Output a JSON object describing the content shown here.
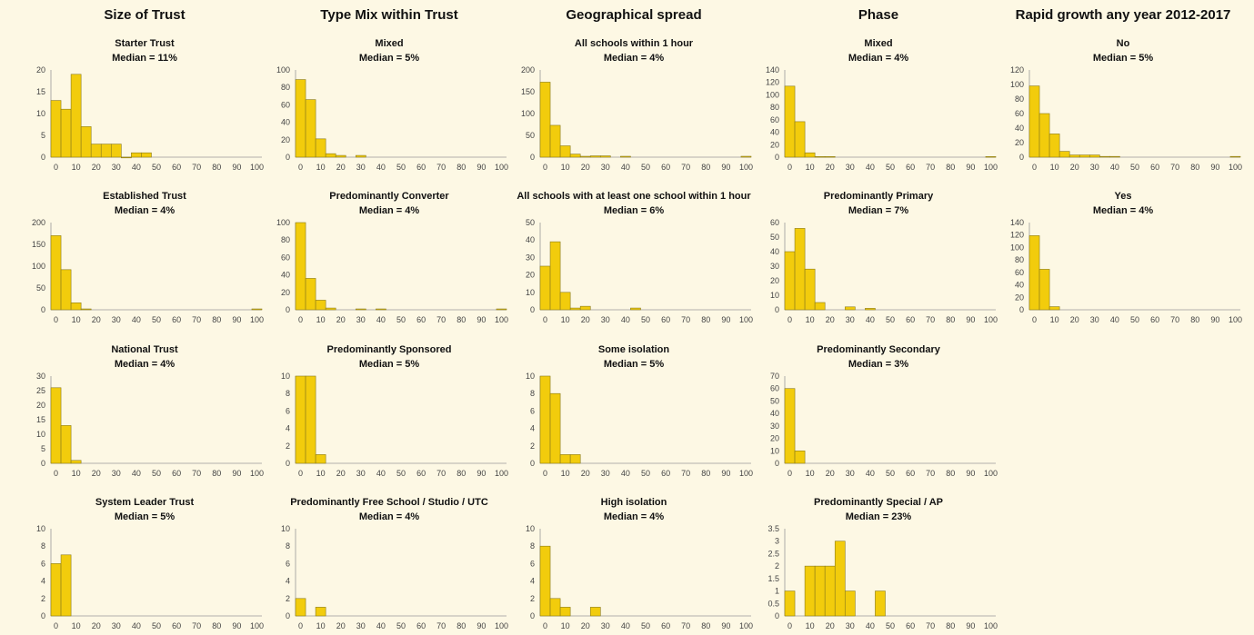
{
  "columns": [
    "Size of Trust",
    "Type Mix within Trust",
    "Geographical spread",
    "Phase",
    "Rapid growth any year 2012-2017"
  ],
  "colors": {
    "bar": "#f2cc0c",
    "bar_edge": "#8a7a1a",
    "axis": "#999999",
    "background": "#fdf8e4"
  },
  "chart_data": [
    {
      "type": "bar",
      "column": 0,
      "row": 0,
      "title": "Starter Trust",
      "subtitle": "Median = 11%",
      "ylim": [
        0,
        20
      ],
      "yticks": [
        0,
        5,
        10,
        15,
        20
      ],
      "x": [
        0,
        5,
        10,
        15,
        20,
        25,
        30,
        35,
        40,
        45
      ],
      "values": [
        13,
        11,
        19,
        7,
        3,
        3,
        3,
        0,
        1,
        1
      ]
    },
    {
      "type": "bar",
      "column": 0,
      "row": 1,
      "title": "Established Trust",
      "subtitle": "Median = 4%",
      "ylim": [
        0,
        200
      ],
      "yticks": [
        0,
        50,
        100,
        150,
        200
      ],
      "x": [
        0,
        5,
        10,
        15,
        100
      ],
      "values": [
        170,
        92,
        16,
        2,
        2
      ]
    },
    {
      "type": "bar",
      "column": 0,
      "row": 2,
      "title": "National Trust",
      "subtitle": "Median = 4%",
      "ylim": [
        0,
        30
      ],
      "yticks": [
        0,
        5,
        10,
        15,
        20,
        25,
        30
      ],
      "x": [
        0,
        5,
        10
      ],
      "values": [
        26,
        13,
        1
      ]
    },
    {
      "type": "bar",
      "column": 0,
      "row": 3,
      "title": "System Leader Trust",
      "subtitle": "Median = 5%",
      "ylim": [
        0,
        10
      ],
      "yticks": [
        0,
        2,
        4,
        6,
        8,
        10
      ],
      "x": [
        0,
        5
      ],
      "values": [
        6,
        7
      ]
    },
    {
      "type": "bar",
      "column": 1,
      "row": 0,
      "title": "Mixed",
      "subtitle": "Median = 5%",
      "ylim": [
        0,
        100
      ],
      "yticks": [
        0,
        20,
        40,
        60,
        80,
        100
      ],
      "x": [
        0,
        5,
        10,
        15,
        20,
        30
      ],
      "values": [
        89,
        66,
        21,
        4,
        2,
        2
      ]
    },
    {
      "type": "bar",
      "column": 1,
      "row": 1,
      "title": "Predominantly Converter",
      "subtitle": "Median = 4%",
      "ylim": [
        0,
        100
      ],
      "yticks": [
        0,
        20,
        40,
        60,
        80,
        100
      ],
      "x": [
        0,
        5,
        10,
        15,
        30,
        40,
        100
      ],
      "values": [
        100,
        36,
        11,
        2,
        1,
        1,
        1
      ]
    },
    {
      "type": "bar",
      "column": 1,
      "row": 2,
      "title": "Predominantly Sponsored",
      "subtitle": "Median = 5%",
      "ylim": [
        0,
        10
      ],
      "yticks": [
        0,
        2,
        4,
        6,
        8,
        10
      ],
      "x": [
        0,
        5,
        10
      ],
      "values": [
        10,
        10,
        1
      ]
    },
    {
      "type": "bar",
      "column": 1,
      "row": 3,
      "title": "Predominantly Free School / Studio / UTC",
      "subtitle": "Median = 4%",
      "ylim": [
        0,
        10
      ],
      "yticks": [
        0,
        2,
        4,
        6,
        8,
        10
      ],
      "x": [
        0,
        10
      ],
      "values": [
        2,
        1
      ]
    },
    {
      "type": "bar",
      "column": 2,
      "row": 0,
      "title": "All schools within 1 hour",
      "subtitle": "Median = 4%",
      "ylim": [
        0,
        200
      ],
      "yticks": [
        0,
        50,
        100,
        150,
        200
      ],
      "x": [
        0,
        5,
        10,
        15,
        20,
        25,
        30,
        40,
        100
      ],
      "values": [
        172,
        73,
        26,
        7,
        2,
        3,
        3,
        2,
        2
      ]
    },
    {
      "type": "bar",
      "column": 2,
      "row": 1,
      "title": "All schools with at least one school within 1 hour",
      "subtitle": "Median = 6%",
      "ylim": [
        0,
        50
      ],
      "yticks": [
        0,
        10,
        20,
        30,
        40,
        50
      ],
      "x": [
        0,
        5,
        10,
        15,
        20,
        45
      ],
      "values": [
        25,
        39,
        10,
        1,
        2,
        1
      ]
    },
    {
      "type": "bar",
      "column": 2,
      "row": 2,
      "title": "Some isolation",
      "subtitle": "Median = 5%",
      "ylim": [
        0,
        10
      ],
      "yticks": [
        0,
        2,
        4,
        6,
        8,
        10
      ],
      "x": [
        0,
        5,
        10,
        15
      ],
      "values": [
        10,
        8,
        1,
        1
      ]
    },
    {
      "type": "bar",
      "column": 2,
      "row": 3,
      "title": "High isolation",
      "subtitle": "Median = 4%",
      "ylim": [
        0,
        10
      ],
      "yticks": [
        0,
        2,
        4,
        6,
        8,
        10
      ],
      "x": [
        0,
        5,
        10,
        25
      ],
      "values": [
        8,
        2,
        1,
        1
      ]
    },
    {
      "type": "bar",
      "column": 3,
      "row": 0,
      "title": "Mixed",
      "subtitle": "Median = 4%",
      "ylim": [
        0,
        140
      ],
      "yticks": [
        0,
        20,
        40,
        60,
        80,
        100,
        120,
        140
      ],
      "x": [
        0,
        5,
        10,
        15,
        20,
        100
      ],
      "values": [
        114,
        57,
        7,
        1,
        1,
        1
      ]
    },
    {
      "type": "bar",
      "column": 3,
      "row": 1,
      "title": "Predominantly Primary",
      "subtitle": "Median = 7%",
      "ylim": [
        0,
        60
      ],
      "yticks": [
        0,
        10,
        20,
        30,
        40,
        50,
        60
      ],
      "x": [
        0,
        5,
        10,
        15,
        30,
        40
      ],
      "values": [
        40,
        56,
        28,
        5,
        2,
        1
      ]
    },
    {
      "type": "bar",
      "column": 3,
      "row": 2,
      "title": "Predominantly Secondary",
      "subtitle": "Median = 3%",
      "ylim": [
        0,
        70
      ],
      "yticks": [
        0,
        10,
        20,
        30,
        40,
        50,
        60,
        70
      ],
      "x": [
        0,
        5
      ],
      "values": [
        60,
        10
      ]
    },
    {
      "type": "bar",
      "column": 3,
      "row": 3,
      "title": "Predominantly Special / AP",
      "subtitle": "Median = 23%",
      "ylim": [
        0,
        3.5
      ],
      "yticks": [
        0,
        0.5,
        1,
        1.5,
        2,
        2.5,
        3,
        3.5
      ],
      "x": [
        0,
        10,
        15,
        20,
        25,
        30,
        45
      ],
      "values": [
        1,
        2,
        2,
        2,
        3,
        1,
        1
      ]
    },
    {
      "type": "bar",
      "column": 4,
      "row": 0,
      "title": "No",
      "subtitle": "Median = 5%",
      "ylim": [
        0,
        120
      ],
      "yticks": [
        0,
        20,
        40,
        60,
        80,
        100,
        120
      ],
      "x": [
        0,
        5,
        10,
        15,
        20,
        25,
        30,
        35,
        40,
        100
      ],
      "values": [
        98,
        60,
        32,
        8,
        3,
        3,
        3,
        1,
        1,
        1
      ]
    },
    {
      "type": "bar",
      "column": 4,
      "row": 1,
      "title": "Yes",
      "subtitle": "Median = 4%",
      "ylim": [
        0,
        140
      ],
      "yticks": [
        0,
        20,
        40,
        60,
        80,
        100,
        120,
        140
      ],
      "x": [
        0,
        5,
        10
      ],
      "values": [
        119,
        65,
        5
      ]
    }
  ],
  "xticks": [
    0,
    10,
    20,
    30,
    40,
    50,
    60,
    70,
    80,
    90,
    100
  ]
}
